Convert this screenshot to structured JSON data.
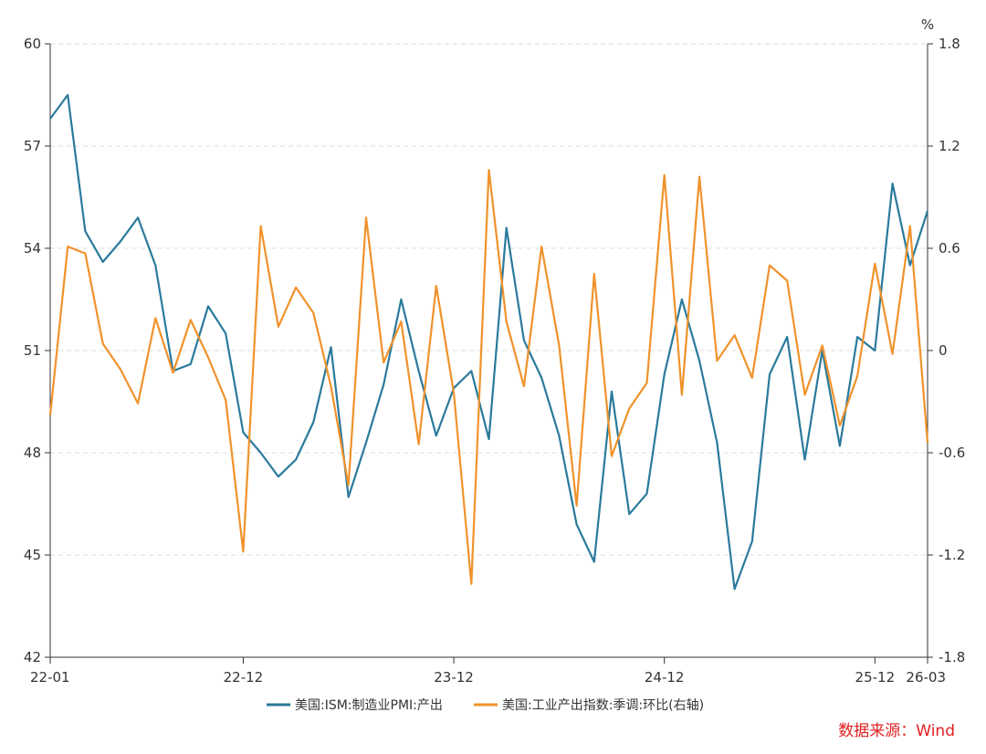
{
  "chart_data": {
    "type": "line",
    "x_ticks": [
      "22-01",
      "22-12",
      "23-12",
      "24-12",
      "25-12",
      "26-03"
    ],
    "y_left": {
      "ticks": [
        "60",
        "57",
        "54",
        "51",
        "48",
        "45",
        "42"
      ],
      "range": [
        42,
        60
      ]
    },
    "y_right": {
      "unit": "%",
      "ticks": [
        "1.8",
        "1.2",
        "0.6",
        "0",
        "-0.6",
        "-1.2",
        "-1.8"
      ],
      "range": [
        -1.8,
        1.8
      ]
    },
    "grid": "horizontal dashed",
    "legend_position": "bottom",
    "series": [
      {
        "name": "美国:ISM:制造业PMI:产出",
        "axis": "left",
        "color": "#2a7a9b",
        "x": [
          "22-01",
          "22-02",
          "22-03",
          "22-04",
          "22-05",
          "22-06",
          "22-07",
          "22-08",
          "22-09",
          "22-10",
          "22-11",
          "22-12",
          "23-01",
          "23-02",
          "23-03",
          "23-04",
          "23-05",
          "23-06",
          "23-07",
          "23-08",
          "23-09",
          "23-10",
          "23-11",
          "23-12",
          "24-01",
          "24-02",
          "24-03",
          "24-04",
          "24-05",
          "24-06",
          "24-07",
          "24-08",
          "24-09",
          "24-10",
          "24-11",
          "24-12",
          "25-01",
          "25-02",
          "25-03",
          "25-04",
          "25-05",
          "25-06",
          "25-07",
          "25-08",
          "25-09",
          "25-10",
          "25-11",
          "25-12",
          "26-01",
          "26-02",
          "26-03"
        ],
        "values": [
          57.8,
          58.5,
          54.5,
          53.6,
          54.2,
          54.9,
          53.5,
          50.4,
          50.6,
          52.3,
          51.5,
          48.6,
          48.0,
          47.3,
          47.8,
          48.9,
          51.1,
          46.7,
          48.3,
          50.0,
          52.5,
          50.4,
          48.5,
          49.9,
          50.4,
          48.4,
          54.6,
          51.3,
          50.2,
          48.5,
          45.9,
          44.8,
          49.8,
          46.2,
          46.8,
          50.3,
          52.5,
          50.7,
          48.3,
          44.0,
          45.4,
          50.3,
          51.4,
          47.8,
          51.0,
          48.2,
          51.4,
          51.0,
          55.9,
          53.5,
          55.1
        ]
      },
      {
        "name": "美国:工业产出指数:季调:环比(右轴)",
        "axis": "right",
        "color": "#f0922b",
        "x": [
          "22-01",
          "22-02",
          "22-03",
          "22-04",
          "22-05",
          "22-06",
          "22-07",
          "22-08",
          "22-09",
          "22-10",
          "22-11",
          "22-12",
          "23-01",
          "23-02",
          "23-03",
          "23-04",
          "23-05",
          "23-06",
          "23-07",
          "23-08",
          "23-09",
          "23-10",
          "23-11",
          "23-12",
          "24-01",
          "24-02",
          "24-03",
          "24-04",
          "24-05",
          "24-06",
          "24-07",
          "24-08",
          "24-09",
          "24-10",
          "24-11",
          "24-12",
          "25-01",
          "25-02",
          "25-03",
          "25-04",
          "25-05",
          "25-06",
          "25-07",
          "25-08",
          "25-09",
          "25-10",
          "25-11",
          "25-12",
          "26-01",
          "26-02",
          "26-03"
        ],
        "values": [
          -0.38,
          0.61,
          0.57,
          0.04,
          -0.11,
          -0.31,
          0.19,
          -0.13,
          0.18,
          -0.04,
          -0.29,
          -1.18,
          0.73,
          0.14,
          0.37,
          0.22,
          -0.21,
          -0.79,
          0.78,
          -0.07,
          0.17,
          -0.55,
          0.38,
          -0.25,
          -1.37,
          1.06,
          0.17,
          -0.21,
          0.61,
          0.03,
          -0.91,
          0.45,
          -0.62,
          -0.34,
          -0.19,
          1.03,
          -0.26,
          1.02,
          -0.06,
          0.09,
          -0.16,
          0.5,
          0.41,
          -0.26,
          0.03,
          -0.44,
          -0.15,
          0.51,
          -0.02,
          0.73,
          -0.54
        ]
      }
    ]
  },
  "source": "数据来源：Wind"
}
